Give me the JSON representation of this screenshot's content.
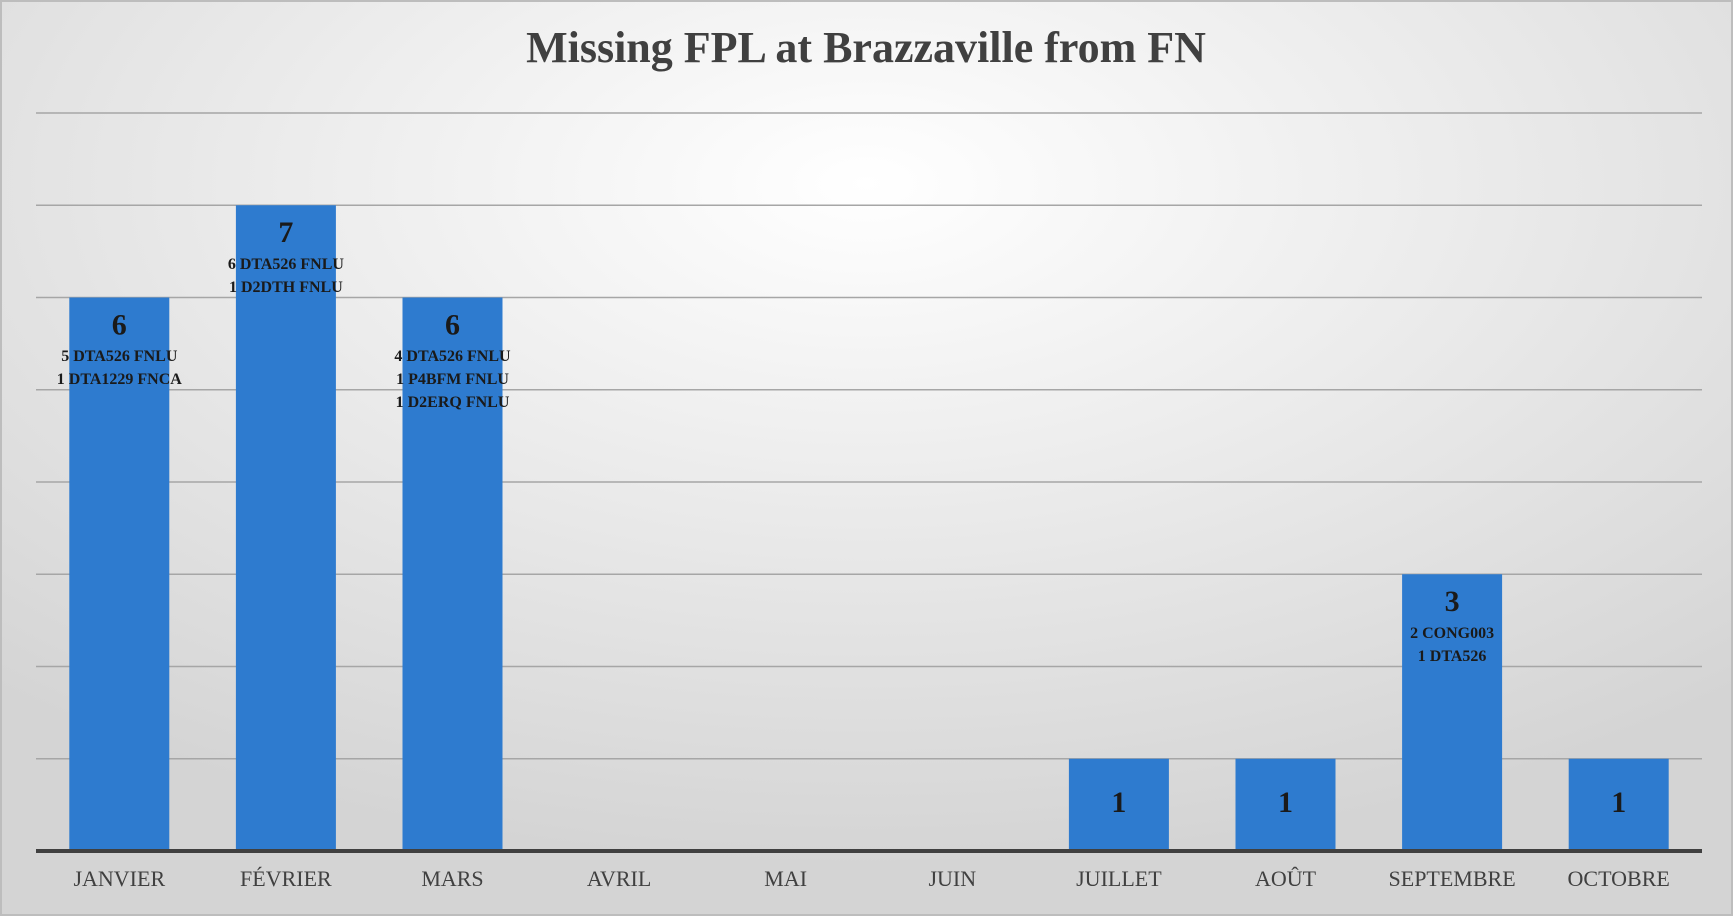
{
  "chart_data": {
    "type": "bar",
    "title": "Missing FPL at Brazzaville from FN",
    "categories": [
      "JANVIER",
      "FÉVRIER",
      "MARS",
      "AVRIL",
      "MAI",
      "JUIN",
      "JUILLET",
      "AOÛT",
      "SEPTEMBRE",
      "OCTOBRE"
    ],
    "values": [
      6,
      7,
      6,
      0,
      0,
      0,
      1,
      1,
      3,
      1
    ],
    "annotations": [
      [
        "5 DTA526 FNLU",
        "1 DTA1229 FNCA"
      ],
      [
        "6 DTA526 FNLU",
        "1 D2DTH FNLU"
      ],
      [
        "4 DTA526 FNLU",
        "1 P4BFM FNLU",
        "1 D2ERQ FNLU"
      ],
      null,
      null,
      null,
      null,
      null,
      [
        "2 CONG003",
        "1 DTA526"
      ],
      null
    ],
    "color": "#2e7bcf",
    "ylim": [
      0,
      8
    ],
    "yticks": [
      0,
      1,
      2,
      3,
      4,
      5,
      6,
      7,
      8
    ],
    "grid": true
  }
}
